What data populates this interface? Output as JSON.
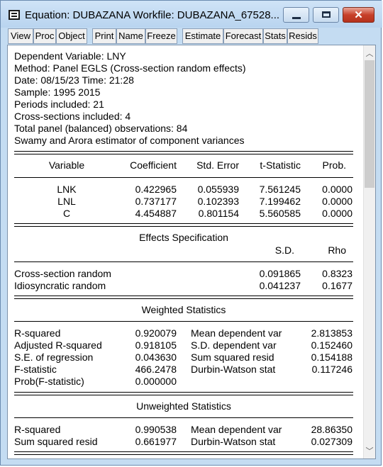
{
  "window": {
    "title": "Equation: DUBAZANA   Workfile: DUBAZANA_67528...",
    "minimize_glyph": "",
    "close_glyph": "✕"
  },
  "toolbar": {
    "buttons": [
      "View",
      "Proc",
      "Object",
      "Print",
      "Name",
      "Freeze",
      "Estimate",
      "Forecast",
      "Stats",
      "Resids"
    ]
  },
  "header": {
    "lines": [
      "Dependent Variable: LNY",
      "Method: Panel EGLS (Cross-section random effects)",
      "Date: 08/15/23   Time: 21:28",
      "Sample: 1995 2015",
      "Periods included: 21",
      "Cross-sections included: 4",
      "Total panel (balanced) observations: 84",
      "Swamy and Arora estimator of component variances"
    ]
  },
  "coef_table": {
    "headers": [
      "Variable",
      "Coefficient",
      "Std. Error",
      "t-Statistic",
      "Prob."
    ],
    "rows": [
      [
        "LNK",
        "0.422965",
        "0.055939",
        "7.561245",
        "0.0000"
      ],
      [
        "LNL",
        "0.737177",
        "0.102393",
        "7.199462",
        "0.0000"
      ],
      [
        "C",
        "4.454887",
        "0.801154",
        "5.560585",
        "0.0000"
      ]
    ]
  },
  "effects": {
    "title": "Effects Specification",
    "headers": [
      "S.D.",
      "Rho"
    ],
    "rows": [
      [
        "Cross-section random",
        "0.091865",
        "0.8323"
      ],
      [
        "Idiosyncratic random",
        "0.041237",
        "0.1677"
      ]
    ]
  },
  "weighted": {
    "title": "Weighted Statistics",
    "rows": [
      [
        "R-squared",
        "0.920079",
        "Mean dependent var",
        "2.813853"
      ],
      [
        "Adjusted R-squared",
        "0.918105",
        "S.D. dependent var",
        "0.152460"
      ],
      [
        "S.E. of regression",
        "0.043630",
        "Sum squared resid",
        "0.154188"
      ],
      [
        "F-statistic",
        "466.2478",
        "Durbin-Watson stat",
        "0.117246"
      ],
      [
        "Prob(F-statistic)",
        "0.000000",
        "",
        ""
      ]
    ]
  },
  "unweighted": {
    "title": "Unweighted Statistics",
    "rows": [
      [
        "R-squared",
        "0.990538",
        "Mean dependent var",
        "28.86350"
      ],
      [
        "Sum squared resid",
        "0.661977",
        "Durbin-Watson stat",
        "0.027309"
      ]
    ]
  },
  "scrollbar": {
    "up_glyph": "︿",
    "down_glyph": "﹀"
  }
}
